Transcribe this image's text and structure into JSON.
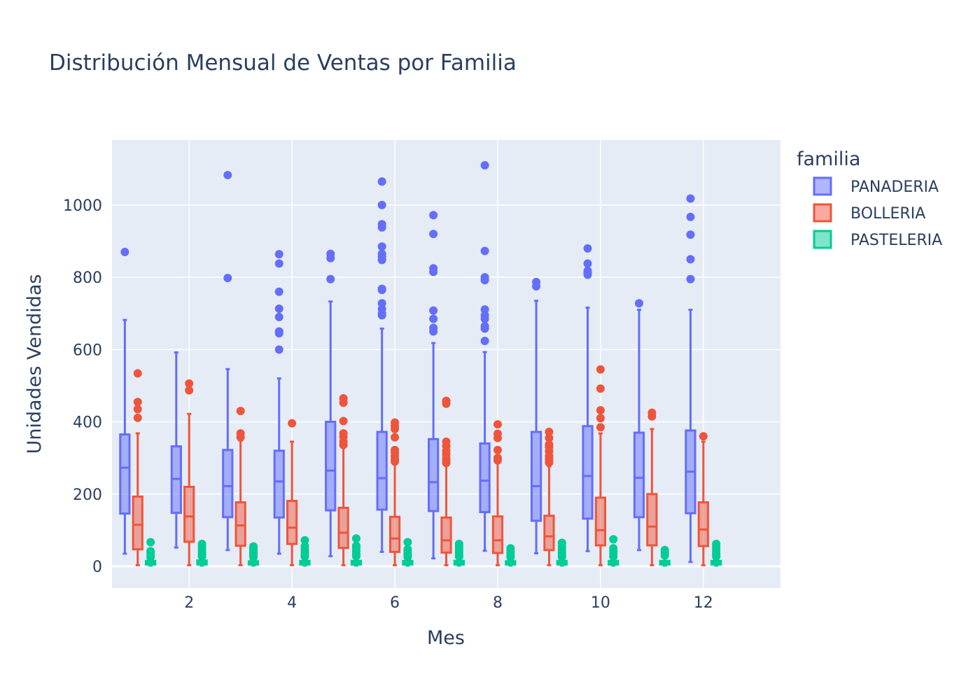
{
  "chart_data": {
    "type": "box",
    "title": "Distribución Mensual de Ventas por Familia",
    "xlabel": "Mes",
    "ylabel": "Unidades Vendidas",
    "xlim": [
      0.5,
      13.5
    ],
    "ylim": [
      -60,
      1180
    ],
    "xticks": [
      2,
      4,
      6,
      8,
      10,
      12
    ],
    "yticks": [
      0,
      200,
      400,
      600,
      800,
      1000
    ],
    "grid": true,
    "legend_title": "familia",
    "legend_position": "right",
    "categories": [
      1,
      2,
      3,
      4,
      5,
      6,
      7,
      8,
      9,
      10,
      11,
      12
    ],
    "series": [
      {
        "name": "PANADERIA",
        "color": "#636efa",
        "boxes": [
          {
            "min": 35,
            "q1": 146,
            "median": 273,
            "q3": 365,
            "max": 682,
            "outliers": [
              870
            ]
          },
          {
            "min": 52,
            "q1": 148,
            "median": 242,
            "q3": 332,
            "max": 592,
            "outliers": []
          },
          {
            "min": 45,
            "q1": 136,
            "median": 222,
            "q3": 322,
            "max": 546,
            "outliers": [
              798,
              1083
            ]
          },
          {
            "min": 35,
            "q1": 135,
            "median": 235,
            "q3": 320,
            "max": 520,
            "outliers": [
              600,
              645,
              650,
              690,
              713,
              760,
              838,
              864
            ]
          },
          {
            "min": 28,
            "q1": 155,
            "median": 265,
            "q3": 400,
            "max": 733,
            "outliers": [
              795,
              853,
              865
            ]
          },
          {
            "min": 40,
            "q1": 157,
            "median": 244,
            "q3": 372,
            "max": 658,
            "outliers": [
              695,
              700,
              712,
              728,
              765,
              768,
              848,
              857,
              865,
              885,
              938,
              947,
              1000,
              1065
            ]
          },
          {
            "min": 22,
            "q1": 153,
            "median": 233,
            "q3": 352,
            "max": 618,
            "outliers": [
              650,
              660,
              685,
              708,
              815,
              825,
              920,
              972
            ]
          },
          {
            "min": 43,
            "q1": 150,
            "median": 237,
            "q3": 340,
            "max": 593,
            "outliers": [
              624,
              658,
              665,
              685,
              695,
              711,
              792,
              800,
              873,
              1110
            ]
          },
          {
            "min": 36,
            "q1": 126,
            "median": 222,
            "q3": 372,
            "max": 735,
            "outliers": [
              775,
              787
            ]
          },
          {
            "min": 42,
            "q1": 132,
            "median": 250,
            "q3": 388,
            "max": 716,
            "outliers": [
              807,
              812,
              818,
              838,
              880
            ]
          },
          {
            "min": 45,
            "q1": 136,
            "median": 245,
            "q3": 370,
            "max": 710,
            "outliers": [
              728
            ]
          },
          {
            "min": 12,
            "q1": 147,
            "median": 262,
            "q3": 376,
            "max": 710,
            "outliers": [
              795,
              850,
              918,
              967,
              1018
            ]
          }
        ]
      },
      {
        "name": "BOLLERIA",
        "color": "#ef553b",
        "boxes": [
          {
            "min": 3,
            "q1": 47,
            "median": 115,
            "q3": 193,
            "max": 368,
            "outliers": [
              411,
              435,
              455,
              534
            ]
          },
          {
            "min": 3,
            "q1": 68,
            "median": 138,
            "q3": 220,
            "max": 422,
            "outliers": [
              487,
              506
            ]
          },
          {
            "min": 3,
            "q1": 57,
            "median": 113,
            "q3": 177,
            "max": 348,
            "outliers": [
              357,
              368,
              430
            ]
          },
          {
            "min": 3,
            "q1": 62,
            "median": 107,
            "q3": 181,
            "max": 345,
            "outliers": [
              396
            ]
          },
          {
            "min": 3,
            "q1": 51,
            "median": 93,
            "q3": 162,
            "max": 328,
            "outliers": [
              336,
              345,
              358,
              368,
              402,
              453,
              465
            ]
          },
          {
            "min": 3,
            "q1": 40,
            "median": 77,
            "q3": 137,
            "max": 285,
            "outliers": [
              290,
              296,
              305,
              315,
              322,
              357,
              380,
              388,
              398
            ]
          },
          {
            "min": 3,
            "q1": 38,
            "median": 72,
            "q3": 135,
            "max": 280,
            "outliers": [
              286,
              293,
              300,
              310,
              320,
              333,
              345,
              450,
              458
            ]
          },
          {
            "min": 3,
            "q1": 37,
            "median": 72,
            "q3": 138,
            "max": 287,
            "outliers": [
              293,
              300,
              322,
              355,
              367,
              393
            ]
          },
          {
            "min": 3,
            "q1": 45,
            "median": 83,
            "q3": 140,
            "max": 277,
            "outliers": [
              287,
              295,
              305,
              318,
              330,
              337,
              355,
              372
            ]
          },
          {
            "min": 3,
            "q1": 58,
            "median": 100,
            "q3": 190,
            "max": 368,
            "outliers": [
              385,
              410,
              432,
              492,
              545
            ]
          },
          {
            "min": 3,
            "q1": 58,
            "median": 110,
            "q3": 200,
            "max": 380,
            "outliers": [
              415,
              425
            ]
          },
          {
            "min": 3,
            "q1": 56,
            "median": 102,
            "q3": 177,
            "max": 345,
            "outliers": [
              360
            ]
          }
        ]
      },
      {
        "name": "PASTELERIA",
        "color": "#00cc96",
        "boxes": [
          {
            "min": 2,
            "q1": 5,
            "median": 10,
            "q3": 15,
            "max": 22,
            "outliers": [
              25,
              30,
              37,
              42,
              67
            ]
          },
          {
            "min": 2,
            "q1": 5,
            "median": 11,
            "q3": 16,
            "max": 23,
            "outliers": [
              27,
              33,
              40,
              47,
              55,
              62
            ]
          },
          {
            "min": 2,
            "q1": 5,
            "median": 9,
            "q3": 14,
            "max": 21,
            "outliers": [
              25,
              30,
              35,
              40,
              45,
              50,
              55
            ]
          },
          {
            "min": 2,
            "q1": 5,
            "median": 10,
            "q3": 15,
            "max": 22,
            "outliers": [
              27,
              33,
              40,
              47,
              55,
              72
            ]
          },
          {
            "min": 2,
            "q1": 5,
            "median": 10,
            "q3": 15,
            "max": 23,
            "outliers": [
              28,
              35,
              42,
              50,
              57,
              77
            ]
          },
          {
            "min": 2,
            "q1": 5,
            "median": 10,
            "q3": 15,
            "max": 22,
            "outliers": [
              26,
              33,
              40,
              47,
              67
            ]
          },
          {
            "min": 2,
            "q1": 5,
            "median": 10,
            "q3": 15,
            "max": 22,
            "outliers": [
              27,
              33,
              40,
              47,
              55,
              62
            ]
          },
          {
            "min": 2,
            "q1": 5,
            "median": 9,
            "q3": 14,
            "max": 21,
            "outliers": [
              25,
              30,
              37,
              43,
              50
            ]
          },
          {
            "min": 2,
            "q1": 5,
            "median": 10,
            "q3": 15,
            "max": 22,
            "outliers": [
              26,
              33,
              40,
              47,
              55,
              65
            ]
          },
          {
            "min": 2,
            "q1": 5,
            "median": 10,
            "q3": 15,
            "max": 22,
            "outliers": [
              27,
              35,
              43,
              50,
              75
            ]
          },
          {
            "min": 2,
            "q1": 5,
            "median": 10,
            "q3": 15,
            "max": 22,
            "outliers": [
              30,
              38,
              45
            ]
          },
          {
            "min": 2,
            "q1": 5,
            "median": 10,
            "q3": 15,
            "max": 22,
            "outliers": [
              27,
              33,
              40,
              47,
              55,
              62
            ]
          }
        ]
      }
    ]
  }
}
